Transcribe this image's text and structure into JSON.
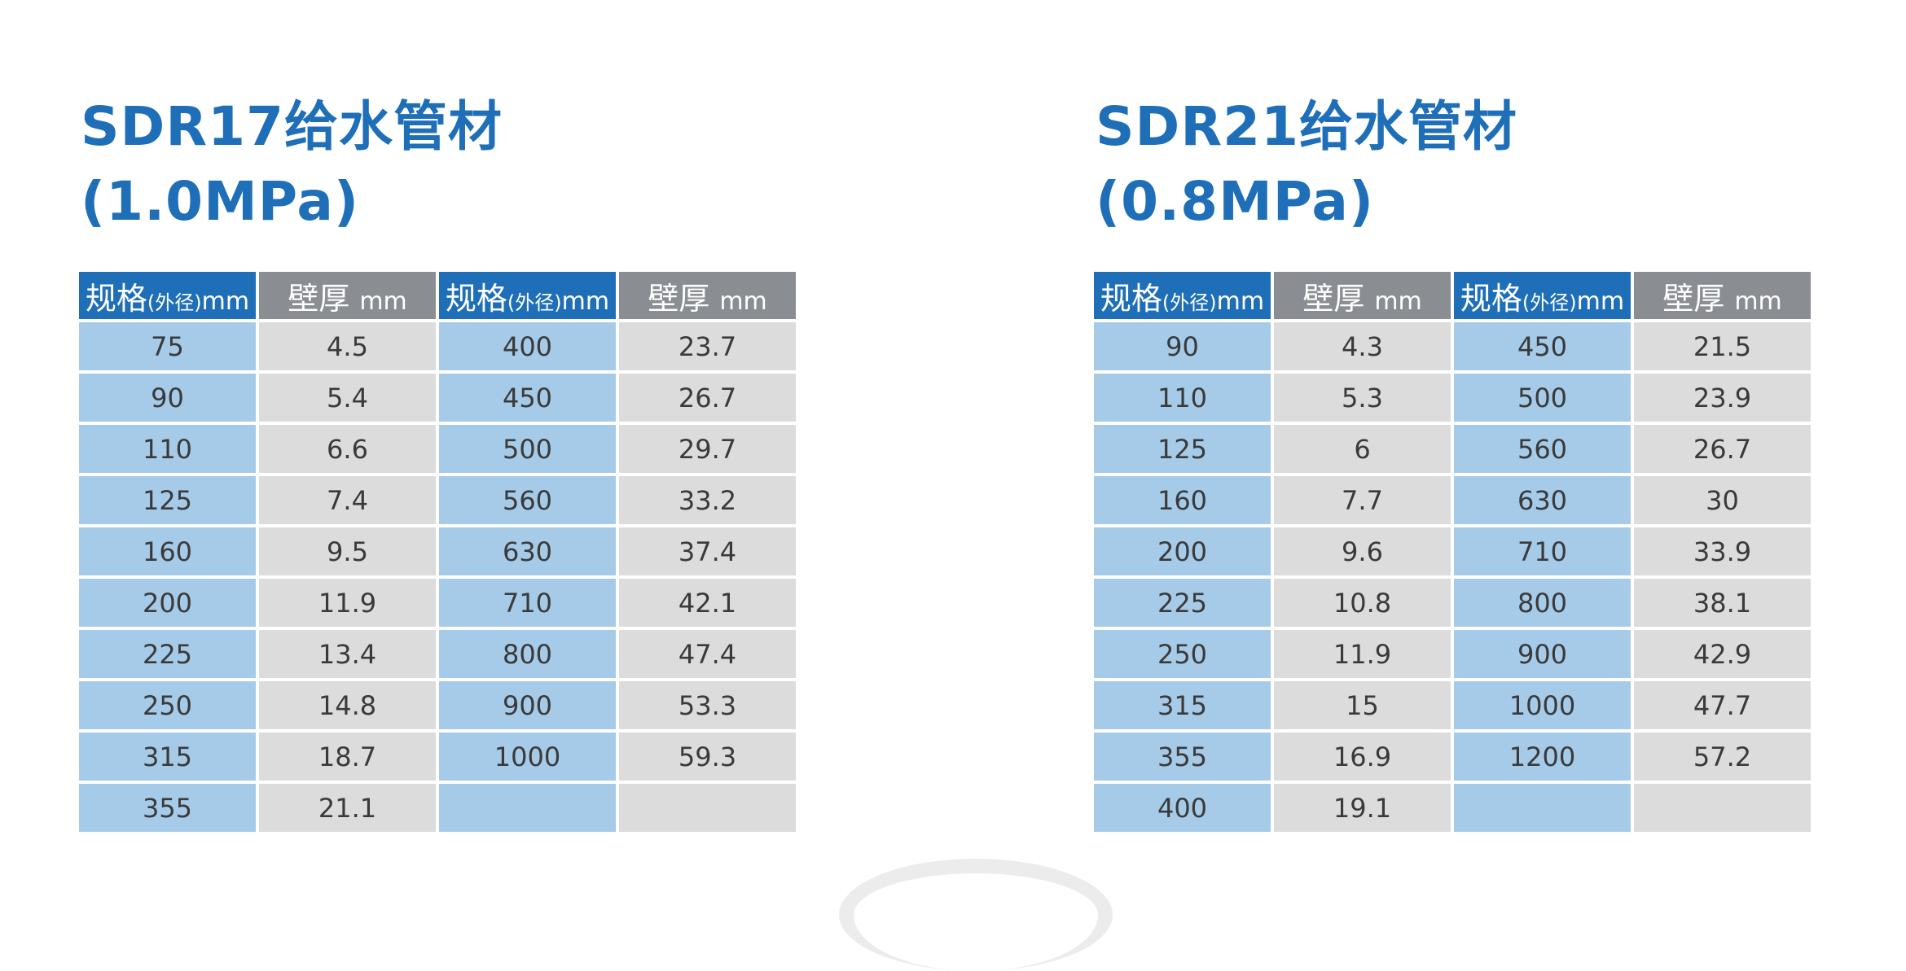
{
  "tables": [
    {
      "title_line1": "SDR17给水管材",
      "title_line2": "(1.0MPa)",
      "header": {
        "spec_main": "规格",
        "spec_sub": "(外径)",
        "spec_unit": "mm",
        "wall_main": "壁厚",
        "wall_unit": "mm"
      },
      "rows": [
        [
          "75",
          "4.5",
          "400",
          "23.7"
        ],
        [
          "90",
          "5.4",
          "450",
          "26.7"
        ],
        [
          "110",
          "6.6",
          "500",
          "29.7"
        ],
        [
          "125",
          "7.4",
          "560",
          "33.2"
        ],
        [
          "160",
          "9.5",
          "630",
          "37.4"
        ],
        [
          "200",
          "11.9",
          "710",
          "42.1"
        ],
        [
          "225",
          "13.4",
          "800",
          "47.4"
        ],
        [
          "250",
          "14.8",
          "900",
          "53.3"
        ],
        [
          "315",
          "18.7",
          "1000",
          "59.3"
        ],
        [
          "355",
          "21.1",
          "",
          ""
        ]
      ]
    },
    {
      "title_line1": "SDR21给水管材",
      "title_line2": "(0.8MPa)",
      "header": {
        "spec_main": "规格",
        "spec_sub": "(外径)",
        "spec_unit": "mm",
        "wall_main": "壁厚",
        "wall_unit": "mm"
      },
      "rows": [
        [
          "90",
          "4.3",
          "450",
          "21.5"
        ],
        [
          "110",
          "5.3",
          "500",
          "23.9"
        ],
        [
          "125",
          "6",
          "560",
          "26.7"
        ],
        [
          "160",
          "7.7",
          "630",
          "30"
        ],
        [
          "200",
          "9.6",
          "710",
          "33.9"
        ],
        [
          "225",
          "10.8",
          "800",
          "38.1"
        ],
        [
          "250",
          "11.9",
          "900",
          "42.9"
        ],
        [
          "315",
          "15",
          "1000",
          "47.7"
        ],
        [
          "355",
          "16.9",
          "1200",
          "57.2"
        ],
        [
          "400",
          "19.1",
          "",
          ""
        ]
      ]
    }
  ]
}
